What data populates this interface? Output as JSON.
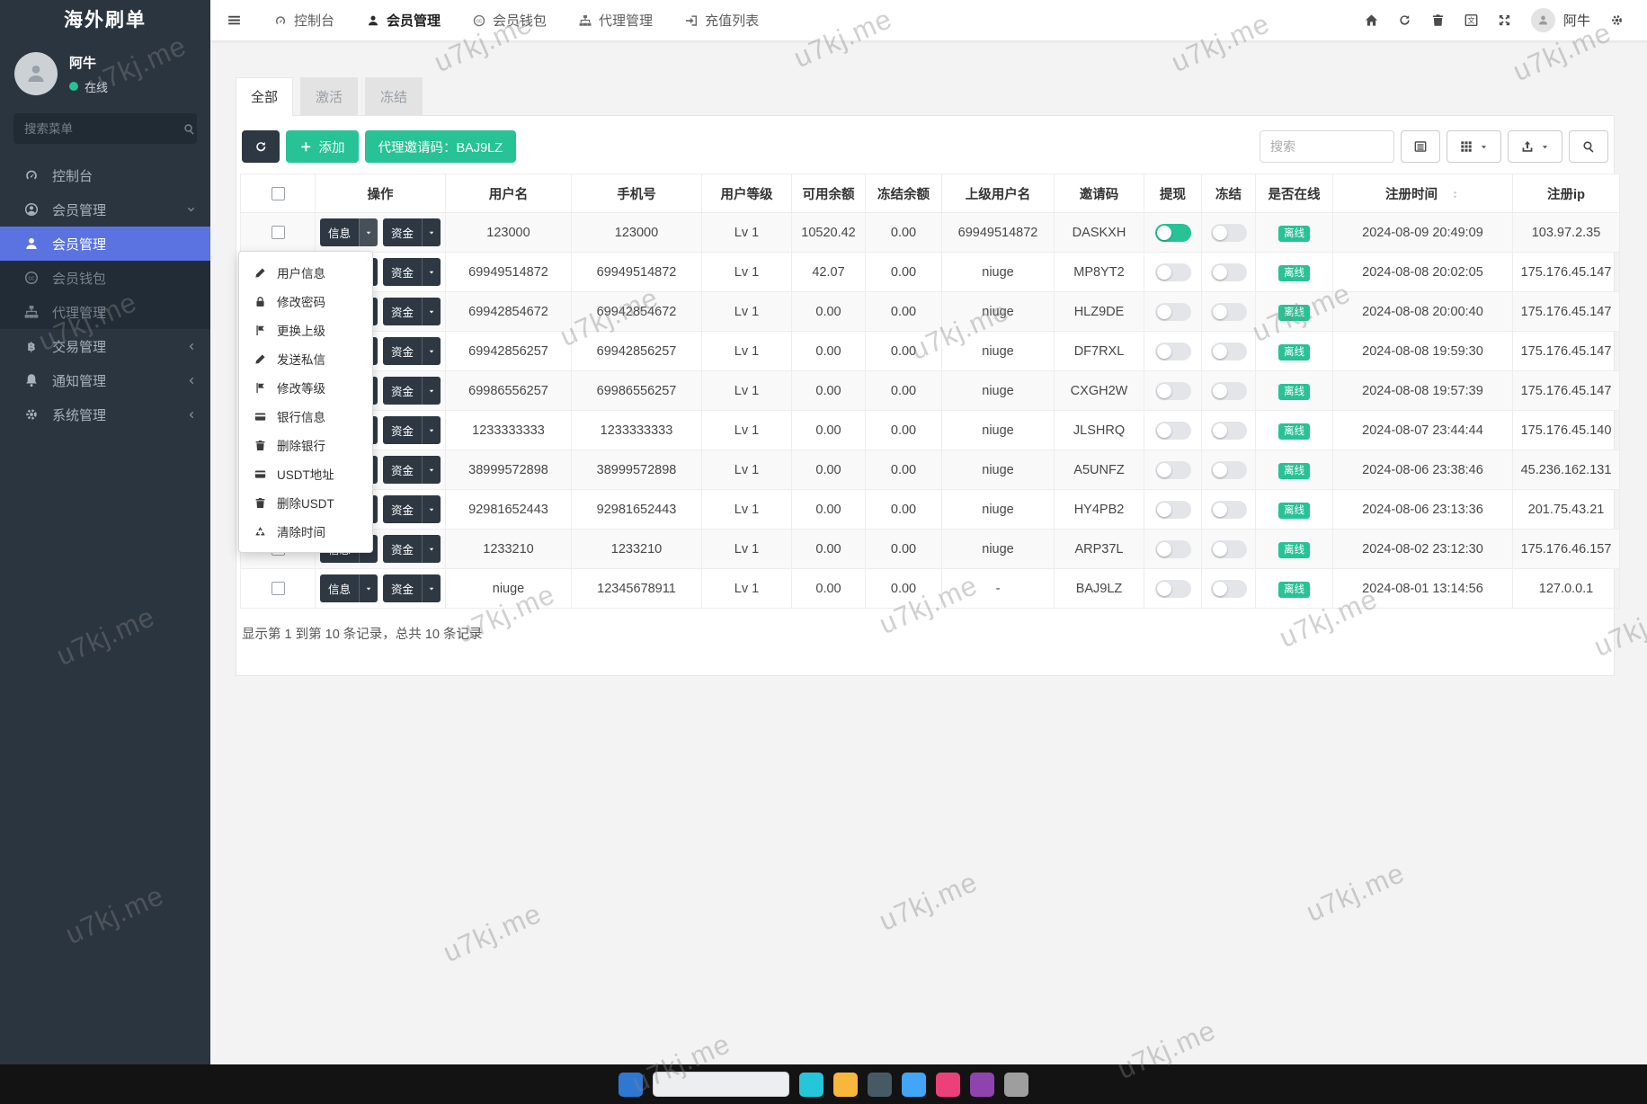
{
  "app": {
    "sidebar_title": "海外刷单",
    "watermark_text": "u7kj.me"
  },
  "colors": {
    "green": "#27c295",
    "active_blue": "#5b73e0",
    "dark_button": "#2d3843",
    "sidebar_bg": "#2a3540"
  },
  "topnav": {
    "items": [
      {
        "label": "控制台",
        "icon": "dashboard",
        "active": false
      },
      {
        "label": "会员管理",
        "icon": "user",
        "active": true
      },
      {
        "label": "会员钱包",
        "icon": "wallet",
        "active": false
      },
      {
        "label": "代理管理",
        "icon": "sitemap",
        "active": false
      },
      {
        "label": "充值列表",
        "icon": "signin",
        "active": false
      }
    ],
    "right_icons": [
      "home",
      "refresh",
      "trash",
      "language",
      "expand"
    ],
    "user": {
      "name": "阿牛"
    },
    "settings_icon": "cogs"
  },
  "sidebar": {
    "user": {
      "name": "阿牛",
      "status": "在线"
    },
    "search_placeholder": "搜索菜单",
    "items": [
      {
        "label": "控制台",
        "icon": "dashboard",
        "type": "item"
      },
      {
        "label": "会员管理",
        "icon": "user-circle",
        "type": "parent-open"
      },
      {
        "label": "会员管理",
        "icon": "user",
        "type": "sub-active"
      },
      {
        "label": "会员钱包",
        "icon": "wallet",
        "type": "sub"
      },
      {
        "label": "代理管理",
        "icon": "sitemap",
        "type": "sub"
      },
      {
        "label": "交易管理",
        "icon": "btc",
        "type": "parent"
      },
      {
        "label": "通知管理",
        "icon": "bell",
        "type": "parent"
      },
      {
        "label": "系统管理",
        "icon": "cogs",
        "type": "parent"
      }
    ]
  },
  "tabs": [
    {
      "label": "全部",
      "active": true
    },
    {
      "label": "激活",
      "active": false
    },
    {
      "label": "冻结",
      "active": false
    }
  ],
  "toolbar": {
    "add_label": "添加",
    "invite_label": "代理邀请码：BAJ9LZ",
    "search_placeholder": "搜索",
    "right_buttons": [
      {
        "icon": "list",
        "caret": false
      },
      {
        "icon": "grid",
        "caret": true
      },
      {
        "icon": "export",
        "caret": true
      },
      {
        "icon": "search",
        "caret": false
      }
    ]
  },
  "table": {
    "headers": [
      {
        "label": "操作"
      },
      {
        "label": "用户名"
      },
      {
        "label": "手机号"
      },
      {
        "label": "用户等级"
      },
      {
        "label": "可用余额"
      },
      {
        "label": "冻结余额"
      },
      {
        "label": "上级用户名"
      },
      {
        "label": "邀请码"
      },
      {
        "label": "提现"
      },
      {
        "label": "冻结"
      },
      {
        "label": "是否在线"
      },
      {
        "label": "注册时间",
        "sortable": true
      },
      {
        "label": "注册ip"
      }
    ],
    "action_buttons": {
      "info": "信息",
      "fund": "资金"
    },
    "rows": [
      {
        "username": "123000",
        "phone": "123000",
        "level": "Lv 1",
        "balance": "10520.42",
        "frozen": "0.00",
        "parent": "69949514872",
        "invite": "DASKXH",
        "withdraw": true,
        "freeze": false,
        "online": "离线",
        "time": "2024-08-09 20:49:09",
        "ip": "103.97.2.35"
      },
      {
        "username": "69949514872",
        "phone": "69949514872",
        "level": "Lv 1",
        "balance": "42.07",
        "frozen": "0.00",
        "parent": "niuge",
        "invite": "MP8YT2",
        "withdraw": false,
        "freeze": false,
        "online": "离线",
        "time": "2024-08-08 20:02:05",
        "ip": "175.176.45.147"
      },
      {
        "username": "69942854672",
        "phone": "69942854672",
        "level": "Lv 1",
        "balance": "0.00",
        "frozen": "0.00",
        "parent": "niuge",
        "invite": "HLZ9DE",
        "withdraw": false,
        "freeze": false,
        "online": "离线",
        "time": "2024-08-08 20:00:40",
        "ip": "175.176.45.147"
      },
      {
        "username": "69942856257",
        "phone": "69942856257",
        "level": "Lv 1",
        "balance": "0.00",
        "frozen": "0.00",
        "parent": "niuge",
        "invite": "DF7RXL",
        "withdraw": false,
        "freeze": false,
        "online": "离线",
        "time": "2024-08-08 19:59:30",
        "ip": "175.176.45.147"
      },
      {
        "username": "69986556257",
        "phone": "69986556257",
        "level": "Lv 1",
        "balance": "0.00",
        "frozen": "0.00",
        "parent": "niuge",
        "invite": "CXGH2W",
        "withdraw": false,
        "freeze": false,
        "online": "离线",
        "time": "2024-08-08 19:57:39",
        "ip": "175.176.45.147"
      },
      {
        "username": "1233333333",
        "phone": "1233333333",
        "level": "Lv 1",
        "balance": "0.00",
        "frozen": "0.00",
        "parent": "niuge",
        "invite": "JLSHRQ",
        "withdraw": false,
        "freeze": false,
        "online": "离线",
        "time": "2024-08-07 23:44:44",
        "ip": "175.176.45.140"
      },
      {
        "username": "38999572898",
        "phone": "38999572898",
        "level": "Lv 1",
        "balance": "0.00",
        "frozen": "0.00",
        "parent": "niuge",
        "invite": "A5UNFZ",
        "withdraw": false,
        "freeze": false,
        "online": "离线",
        "time": "2024-08-06 23:38:46",
        "ip": "45.236.162.131"
      },
      {
        "username": "92981652443",
        "phone": "92981652443",
        "level": "Lv 1",
        "balance": "0.00",
        "frozen": "0.00",
        "parent": "niuge",
        "invite": "HY4PB2",
        "withdraw": false,
        "freeze": false,
        "online": "离线",
        "time": "2024-08-06 23:13:36",
        "ip": "201.75.43.21"
      },
      {
        "username": "1233210",
        "phone": "1233210",
        "level": "Lv 1",
        "balance": "0.00",
        "frozen": "0.00",
        "parent": "niuge",
        "invite": "ARP37L",
        "withdraw": false,
        "freeze": false,
        "online": "离线",
        "time": "2024-08-02 23:12:30",
        "ip": "175.176.46.157"
      },
      {
        "username": "niuge",
        "phone": "12345678911",
        "level": "Lv 1",
        "balance": "0.00",
        "frozen": "0.00",
        "parent": "-",
        "invite": "BAJ9LZ",
        "withdraw": false,
        "freeze": false,
        "online": "离线",
        "time": "2024-08-01 13:14:56",
        "ip": "127.0.0.1"
      }
    ],
    "summary": "显示第 1 到第 10 条记录，总共 10 条记录"
  },
  "dropdown": {
    "items": [
      {
        "label": "用户信息",
        "icon": "pencil"
      },
      {
        "label": "修改密码",
        "icon": "lock"
      },
      {
        "label": "更换上级",
        "icon": "flag"
      },
      {
        "label": "发送私信",
        "icon": "pencil"
      },
      {
        "label": "修改等级",
        "icon": "flag"
      },
      {
        "label": "银行信息",
        "icon": "credit-card"
      },
      {
        "label": "删除银行",
        "icon": "trash"
      },
      {
        "label": "USDT地址",
        "icon": "credit-card"
      },
      {
        "label": "删除USDT",
        "icon": "trash"
      },
      {
        "label": "清除时间",
        "icon": "recycle"
      }
    ]
  },
  "taskbar": {
    "icon_colors": [
      "#2e78d2",
      "#26c6da",
      "#f6b73c",
      "#455a64",
      "#42a5f5",
      "#ec407a",
      "#8e44ad",
      "#9e9e9e"
    ]
  }
}
